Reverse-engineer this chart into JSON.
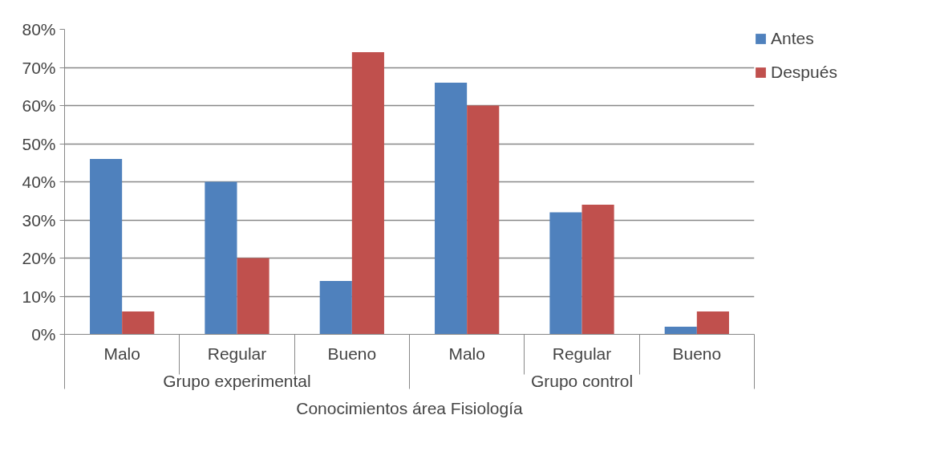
{
  "chart_data": {
    "type": "bar",
    "xlabel": "Conocimientos área Fisiología",
    "categories": [
      "Malo",
      "Regular",
      "Bueno",
      "Malo",
      "Regular",
      "Bueno"
    ],
    "annotations": [
      "Grupo experimental",
      "Grupo control"
    ],
    "series": [
      {
        "name": "Antes",
        "color": "#4f81bd",
        "values": [
          46,
          40,
          14,
          66,
          32,
          2
        ]
      },
      {
        "name": "Después",
        "color": "#c0504d",
        "values": [
          6,
          20,
          74,
          60,
          34,
          6
        ]
      }
    ],
    "ylim": [
      0,
      80
    ],
    "yticks": [
      {
        "value": 0,
        "label": "0%"
      },
      {
        "value": 10,
        "label": "10%"
      },
      {
        "value": 20,
        "label": "20%"
      },
      {
        "value": 30,
        "label": "30%"
      },
      {
        "value": 40,
        "label": "40%"
      },
      {
        "value": 50,
        "label": "50%"
      },
      {
        "value": 60,
        "label": "60%"
      },
      {
        "value": 70,
        "label": "70%"
      },
      {
        "value": 80,
        "label": "80%"
      }
    ],
    "grid": "y",
    "legend": "right"
  }
}
